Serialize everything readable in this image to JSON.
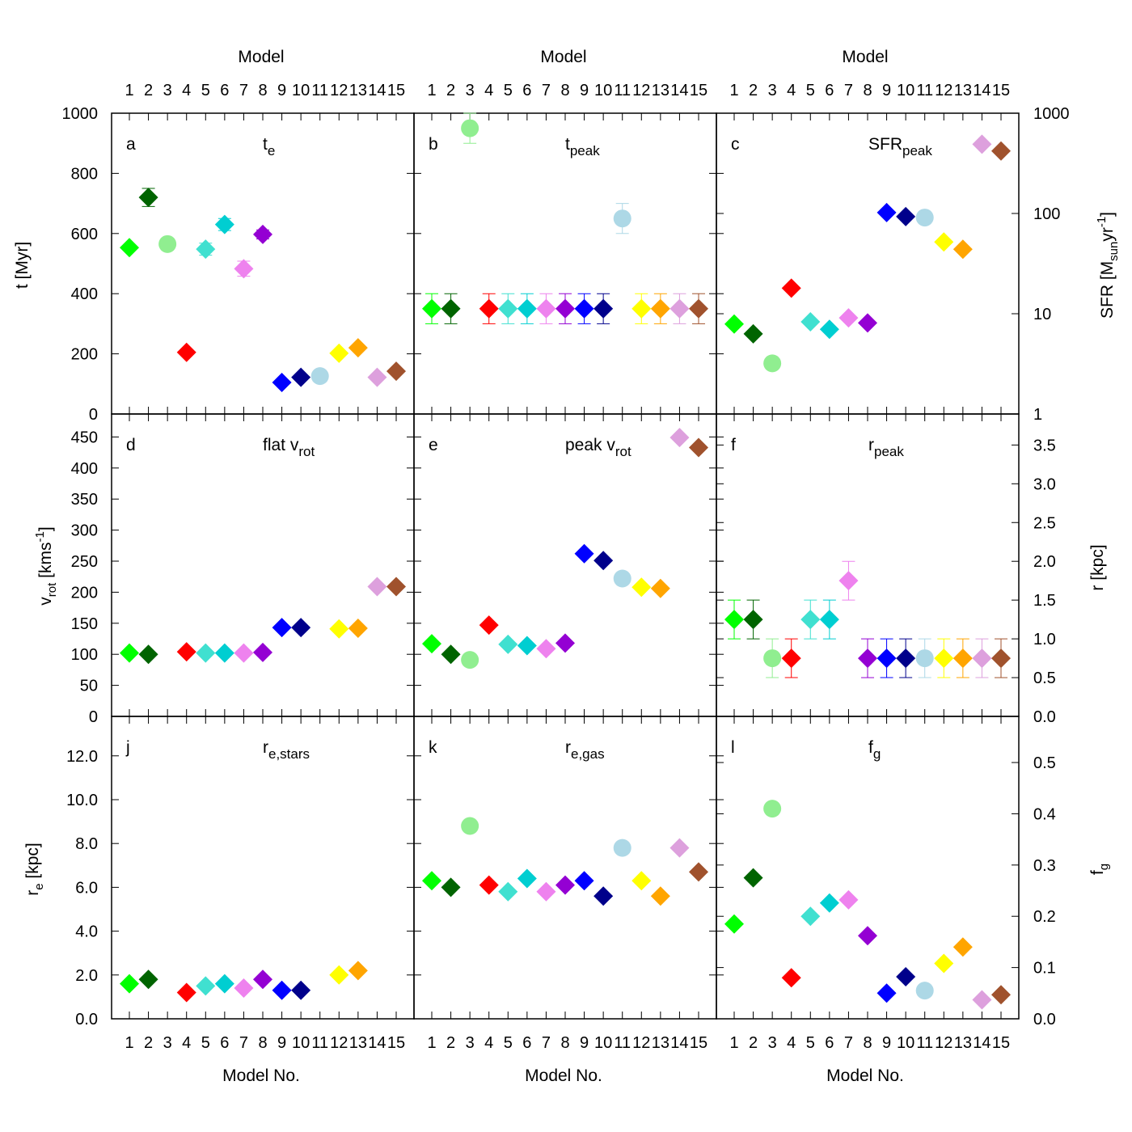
{
  "chart_data": {
    "type": "scatter",
    "markers": {
      "3": "circle",
      "11": "circle",
      "default": "diamond"
    },
    "model_colors": {
      "1": "#00ff00",
      "2": "#006400",
      "3": "#90ee90",
      "4": "#ff0000",
      "5": "#40e0d0",
      "6": "#00ced1",
      "7": "#ee82ee",
      "8": "#9400d3",
      "9": "#0000ff",
      "10": "#00008b",
      "11": "#add8e6",
      "12": "#ffff00",
      "13": "#ffa500",
      "14": "#dda0dd",
      "15": "#a0522d"
    },
    "x_ticks": [
      "1",
      "2",
      "3",
      "4",
      "5",
      "6",
      "7",
      "8",
      "9",
      "10",
      "11",
      "12",
      "13",
      "14",
      "15"
    ],
    "top_axis_label": "Model",
    "bottom_axis_label": "Model No.",
    "row_axes": [
      {
        "left": {
          "label_main": "t [Myr]",
          "label_sub": "",
          "label_tail": "",
          "ticks": [
            "0",
            "200",
            "400",
            "600",
            "800",
            "1000"
          ],
          "range": [
            0,
            1000
          ]
        },
        "right": {
          "label_main": "SFR [M",
          "label_sub": "sun",
          "label_tail": "yr",
          "label_sup": "-1",
          "label_end": "]",
          "ticks": [
            "1",
            "10",
            "100",
            "1000"
          ],
          "range": [
            1,
            1000
          ],
          "log": true
        }
      },
      {
        "left": {
          "label_main": "v",
          "label_sub": "rot",
          "label_tail": " [kms",
          "label_sup": "-1",
          "label_end": "]",
          "ticks": [
            "0",
            "50",
            "100",
            "150",
            "200",
            "250",
            "300",
            "350",
            "400",
            "450"
          ],
          "range": [
            0,
            487
          ]
        },
        "right": {
          "label_main": "r [kpc]",
          "ticks": [
            "0.0",
            "0.5",
            "1.0",
            "1.5",
            "2.0",
            "2.5",
            "3.0",
            "3.5"
          ],
          "range": [
            0,
            3.9
          ]
        }
      },
      {
        "left": {
          "label_main": "r",
          "label_sub": "e",
          "label_tail": " [kpc]",
          "ticks": [
            "0.0",
            "2.0",
            "4.0",
            "6.0",
            "8.0",
            "10.0",
            "12.0"
          ],
          "range": [
            0,
            13.8
          ]
        },
        "right": {
          "label_main": "f",
          "label_sub": "g",
          "ticks": [
            "0.0",
            "0.1",
            "0.2",
            "0.3",
            "0.4",
            "0.5"
          ],
          "range": [
            0,
            0.59
          ]
        }
      }
    ],
    "panels": [
      {
        "id": "a",
        "row": 0,
        "col": 0,
        "letter": "a",
        "title_main": "t",
        "title_sub": "e",
        "axis": "left",
        "points": [
          [
            1,
            553,
            0
          ],
          [
            2,
            720,
            30
          ],
          [
            3,
            565,
            0
          ],
          [
            4,
            205,
            0
          ],
          [
            5,
            548,
            20
          ],
          [
            6,
            630,
            20
          ],
          [
            7,
            483,
            25
          ],
          [
            8,
            597,
            15
          ],
          [
            9,
            105,
            0
          ],
          [
            10,
            122,
            0
          ],
          [
            11,
            126,
            0
          ],
          [
            12,
            202,
            0
          ],
          [
            13,
            220,
            0
          ],
          [
            14,
            122,
            0
          ],
          [
            15,
            142,
            0
          ]
        ]
      },
      {
        "id": "b",
        "row": 0,
        "col": 1,
        "letter": "b",
        "title_main": "t",
        "title_sub": "peak",
        "axis": "left",
        "points": [
          [
            1,
            350,
            50
          ],
          [
            2,
            350,
            50
          ],
          [
            3,
            950,
            50
          ],
          [
            4,
            350,
            50
          ],
          [
            5,
            350,
            50
          ],
          [
            6,
            350,
            50
          ],
          [
            7,
            350,
            50
          ],
          [
            8,
            350,
            50
          ],
          [
            9,
            350,
            50
          ],
          [
            10,
            350,
            50
          ],
          [
            11,
            650,
            50
          ],
          [
            12,
            350,
            50
          ],
          [
            13,
            350,
            50
          ],
          [
            14,
            350,
            50
          ],
          [
            15,
            350,
            50
          ]
        ]
      },
      {
        "id": "c",
        "row": 0,
        "col": 2,
        "letter": "c",
        "title_main": "SFR",
        "title_sub": "peak",
        "axis": "right",
        "points": [
          [
            1,
            7.9,
            0
          ],
          [
            2,
            6.3,
            0
          ],
          [
            3,
            3.2,
            0
          ],
          [
            4,
            18,
            0
          ],
          [
            5,
            8.3,
            0
          ],
          [
            6,
            7,
            0
          ],
          [
            7,
            9.1,
            0
          ],
          [
            8,
            8.1,
            0
          ],
          [
            9,
            102,
            0
          ],
          [
            10,
            93,
            0
          ],
          [
            11,
            91,
            0
          ],
          [
            12,
            52,
            0
          ],
          [
            13,
            44,
            0
          ],
          [
            14,
            490,
            0
          ],
          [
            15,
            420,
            0
          ]
        ]
      },
      {
        "id": "d",
        "row": 1,
        "col": 0,
        "letter": "d",
        "title_main": "flat v",
        "title_sub": "rot",
        "axis": "left",
        "points": [
          [
            1,
            102,
            0
          ],
          [
            2,
            100,
            0
          ],
          [
            4,
            104,
            0
          ],
          [
            5,
            102,
            0
          ],
          [
            6,
            102,
            0
          ],
          [
            7,
            102,
            0
          ],
          [
            8,
            103,
            0
          ],
          [
            9,
            143,
            0
          ],
          [
            10,
            143,
            0
          ],
          [
            12,
            141,
            0
          ],
          [
            13,
            142,
            0
          ],
          [
            14,
            209,
            0
          ],
          [
            15,
            209,
            0
          ]
        ]
      },
      {
        "id": "e",
        "row": 1,
        "col": 1,
        "letter": "e",
        "title_main": "peak v",
        "title_sub": "rot",
        "axis": "left",
        "points": [
          [
            1,
            117,
            0
          ],
          [
            2,
            100,
            0
          ],
          [
            3,
            91,
            0
          ],
          [
            4,
            147,
            0
          ],
          [
            5,
            116,
            0
          ],
          [
            6,
            114,
            0
          ],
          [
            7,
            109,
            0
          ],
          [
            8,
            118,
            0
          ],
          [
            9,
            262,
            0
          ],
          [
            10,
            251,
            0
          ],
          [
            11,
            222,
            0
          ],
          [
            12,
            208,
            0
          ],
          [
            13,
            206,
            0
          ],
          [
            14,
            449,
            0
          ],
          [
            15,
            433,
            0
          ]
        ]
      },
      {
        "id": "f",
        "row": 1,
        "col": 2,
        "letter": "f",
        "title_main": "r",
        "title_sub": "peak",
        "axis": "right",
        "points": [
          [
            1,
            1.25,
            0.25
          ],
          [
            2,
            1.25,
            0.25
          ],
          [
            3,
            0.75,
            0.25
          ],
          [
            4,
            0.75,
            0.25
          ],
          [
            5,
            1.25,
            0.25
          ],
          [
            6,
            1.25,
            0.25
          ],
          [
            7,
            1.75,
            0.25
          ],
          [
            8,
            0.75,
            0.25
          ],
          [
            9,
            0.75,
            0.25
          ],
          [
            10,
            0.75,
            0.25
          ],
          [
            11,
            0.75,
            0.25
          ],
          [
            12,
            0.75,
            0.25
          ],
          [
            13,
            0.75,
            0.25
          ],
          [
            14,
            0.75,
            0.25
          ],
          [
            15,
            0.75,
            0.25
          ]
        ]
      },
      {
        "id": "j",
        "row": 2,
        "col": 0,
        "letter": "j",
        "title_main": "r",
        "title_sub": "e,stars",
        "axis": "left",
        "points": [
          [
            1,
            1.6,
            0
          ],
          [
            2,
            1.8,
            0
          ],
          [
            4,
            1.2,
            0
          ],
          [
            5,
            1.5,
            0
          ],
          [
            6,
            1.6,
            0
          ],
          [
            7,
            1.4,
            0
          ],
          [
            8,
            1.8,
            0
          ],
          [
            9,
            1.3,
            0
          ],
          [
            10,
            1.3,
            0
          ],
          [
            12,
            2.0,
            0
          ],
          [
            13,
            2.2,
            0
          ]
        ]
      },
      {
        "id": "k",
        "row": 2,
        "col": 1,
        "letter": "k",
        "title_main": "r",
        "title_sub": "e,gas",
        "axis": "left",
        "points": [
          [
            1,
            6.3,
            0
          ],
          [
            2,
            6.0,
            0
          ],
          [
            3,
            8.8,
            0
          ],
          [
            4,
            6.1,
            0
          ],
          [
            5,
            5.8,
            0
          ],
          [
            6,
            6.4,
            0
          ],
          [
            7,
            5.8,
            0
          ],
          [
            8,
            6.1,
            0
          ],
          [
            9,
            6.3,
            0
          ],
          [
            10,
            5.6,
            0
          ],
          [
            11,
            7.8,
            0
          ],
          [
            12,
            6.3,
            0
          ],
          [
            13,
            5.6,
            0
          ],
          [
            14,
            7.8,
            0
          ],
          [
            15,
            6.7,
            0
          ]
        ]
      },
      {
        "id": "l",
        "row": 2,
        "col": 2,
        "letter": "l",
        "title_main": "f",
        "title_sub": "g",
        "axis": "right",
        "points": [
          [
            1,
            0.185,
            0
          ],
          [
            2,
            0.275,
            0
          ],
          [
            3,
            0.41,
            0
          ],
          [
            4,
            0.08,
            0
          ],
          [
            5,
            0.2,
            0
          ],
          [
            6,
            0.226,
            0
          ],
          [
            7,
            0.232,
            0
          ],
          [
            8,
            0.162,
            0
          ],
          [
            9,
            0.05,
            0
          ],
          [
            10,
            0.082,
            0
          ],
          [
            11,
            0.055,
            0
          ],
          [
            12,
            0.108,
            0
          ],
          [
            13,
            0.14,
            0
          ],
          [
            14,
            0.037,
            0
          ],
          [
            15,
            0.047,
            0
          ]
        ]
      }
    ]
  }
}
